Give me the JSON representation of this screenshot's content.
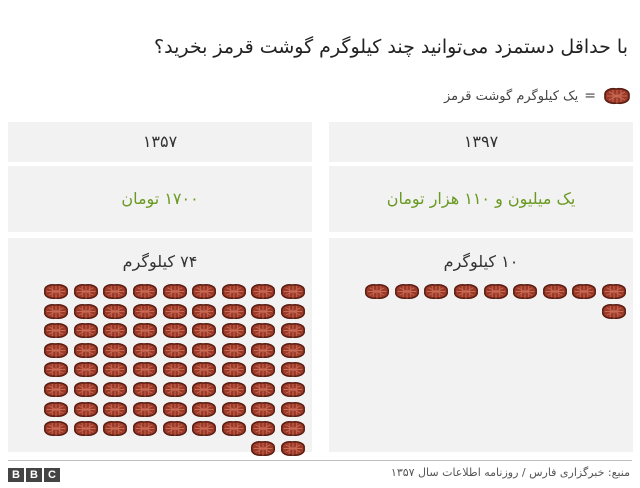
{
  "title": "با حداقل دستمزد می‌توانید چند کیلوگرم گوشت قرمز بخرید؟",
  "legend": {
    "icon": "steak-icon",
    "equals": "=",
    "label": "یک کیلوگرم گوشت قرمز"
  },
  "colors": {
    "price_text": "#6a9a23",
    "panel_bg": "#f2f2f2",
    "steak_fill": "#9b3a28",
    "steak_outline": "#5a1d12"
  },
  "chart_data": {
    "type": "table",
    "unit": "steak icons, 1 icon = 1 kg of red meat",
    "columns": [
      {
        "year": "۱۳۹۷",
        "price": "یک میلیون و ۱۱۰ هزار تومان",
        "kg_label": "۱۰ کیلوگرم",
        "kg": 10
      },
      {
        "year": "۱۳۵۷",
        "price": "۱۷۰۰ تومان",
        "kg_label": "۷۴ کیلوگرم",
        "kg": 74
      }
    ]
  },
  "footer": {
    "logo": "BBC",
    "source": "منبع: خبرگزاری فارس / روزنامه اطلاعات سال ۱۳۵۷"
  }
}
